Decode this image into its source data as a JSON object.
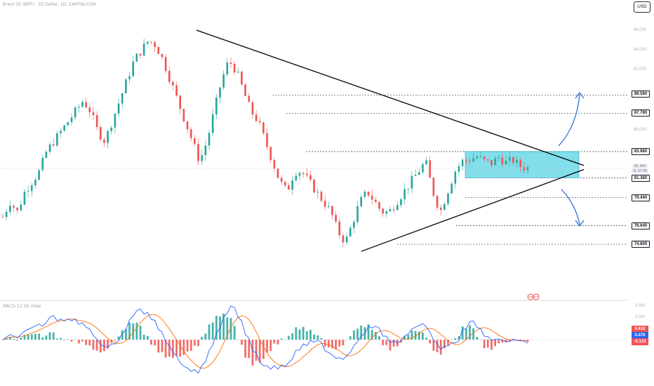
{
  "header": {
    "symbol_line": "Brent Oil (BRT) · 1D Dollar, 1D, CAPITALCOM",
    "currency": "USD",
    "macd_label": "MACD 12 26 close"
  },
  "price_axis": {
    "grey_ticks": [
      "96.000",
      "94.000",
      "92.000",
      "86.000",
      "84.000"
    ],
    "level_labels": [
      "89.580",
      "87.780",
      "83.980",
      "81.380",
      "79.440",
      "76.640",
      "74.800"
    ],
    "current_price": "82.350",
    "countdown": "11:07:55"
  },
  "macd_axis": {
    "grey_ticks": [
      "3.000",
      "2.000"
    ],
    "values": [
      "0.610",
      "0.476",
      "-0.133"
    ]
  },
  "colors": {
    "up": "#26a69a",
    "down": "#ef5350",
    "macd_line": "#2962ff",
    "signal_line": "#ff6d00",
    "box_fill": "#4dd0e1",
    "arrow": "#1e64d8"
  },
  "chart_data": {
    "type": "candlestick",
    "y_unit": "USD",
    "price_series_approx": [
      77.5,
      79,
      78,
      80,
      81,
      82,
      84,
      85,
      86,
      87,
      88,
      89,
      88,
      86,
      85,
      87,
      89,
      91,
      93,
      94,
      95,
      94.5,
      93,
      91,
      89,
      87,
      85,
      83,
      85,
      88,
      91,
      93,
      92,
      90,
      88,
      87,
      85,
      83,
      81,
      80,
      82,
      82,
      81,
      80,
      79,
      78,
      76,
      75,
      77,
      79,
      80,
      79,
      78,
      78,
      79,
      80,
      81,
      82,
      83,
      80,
      78,
      80,
      82,
      83,
      83.2,
      83.5,
      83,
      82.8,
      83.4,
      82.9,
      83.1,
      82.5,
      82.35
    ],
    "horizontal_levels": [
      89.58,
      87.78,
      83.98,
      81.38,
      79.44,
      76.64,
      74.8
    ],
    "consolidation_box": {
      "top": 83.98,
      "bottom": 81.38
    },
    "triangle": {
      "upper_line": {
        "from": 96.0,
        "to": 82.6
      },
      "lower_line": {
        "from": 74.1,
        "to": 82.2
      }
    },
    "macd": {
      "macd_value": 0.476,
      "signal_value": 0.61,
      "histogram_value": -0.133
    }
  }
}
